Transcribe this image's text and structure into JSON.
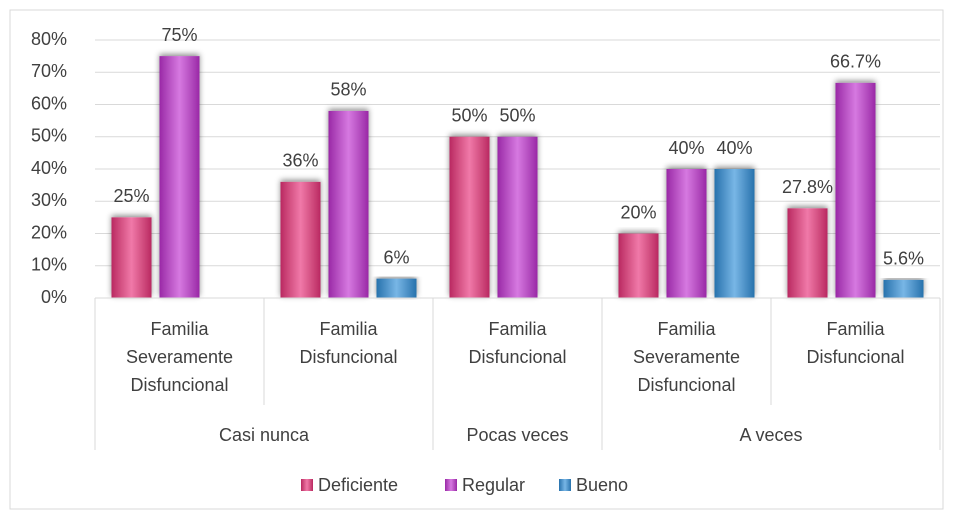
{
  "chart_data": {
    "type": "bar",
    "groups": [
      {
        "name": "Casi nunca",
        "categories": [
          "Familia Severamente Disfuncional",
          "Familia Disfuncional"
        ]
      },
      {
        "name": "Pocas veces",
        "categories": [
          "Familia Disfuncional"
        ]
      },
      {
        "name": "A veces",
        "categories": [
          "Familia Severamente Disfuncional",
          "Familia Disfuncional"
        ]
      }
    ],
    "series": [
      {
        "name": "Deficiente",
        "color": "#e8307a",
        "values": [
          25,
          36,
          50,
          20,
          27.8
        ],
        "value_labels": [
          "25%",
          "36%",
          "50%",
          "20%",
          "27.8%"
        ]
      },
      {
        "name": "Regular",
        "color": "#c030d0",
        "values": [
          75,
          58,
          50,
          40,
          66.7
        ],
        "value_labels": [
          "75%",
          "58%",
          "50%",
          "40%",
          "66.7%"
        ]
      },
      {
        "name": "Bueno",
        "color": "#2f8fd8",
        "values": [
          null,
          6,
          null,
          40,
          5.6
        ],
        "value_labels": [
          null,
          "6%",
          null,
          "40%",
          "5.6%"
        ]
      }
    ],
    "ylim": [
      0,
      80
    ],
    "yticks": [
      {
        "value": 0,
        "label": "0%"
      },
      {
        "value": 10,
        "label": "10%"
      },
      {
        "value": 20,
        "label": "20%"
      },
      {
        "value": 30,
        "label": "30%"
      },
      {
        "value": 40,
        "label": "40%"
      },
      {
        "value": 50,
        "label": "50%"
      },
      {
        "value": 60,
        "label": "60%"
      },
      {
        "value": 70,
        "label": "70%"
      },
      {
        "value": 80,
        "label": "80%"
      }
    ],
    "grid": true,
    "legend": "bottom"
  }
}
